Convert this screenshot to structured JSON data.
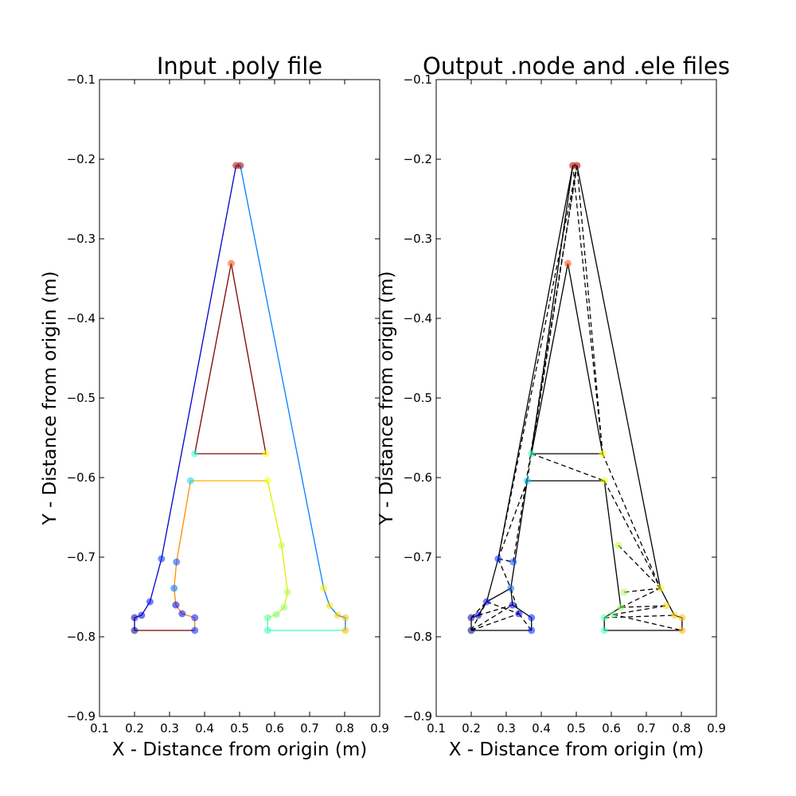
{
  "chart_data": [
    {
      "type": "line",
      "title": "Input .poly file",
      "xlabel": "X - Distance from origin (m)",
      "ylabel": "Y - Distance from origin (m)",
      "xlim": [
        0.1,
        0.9
      ],
      "ylim": [
        -0.9,
        -0.1
      ],
      "xticks": [
        "0.1",
        "0.2",
        "0.3",
        "0.4",
        "0.5",
        "0.6",
        "0.7",
        "0.8",
        "0.9"
      ],
      "yticks": [
        "−0.1",
        "−0.2",
        "−0.3",
        "−0.4",
        "−0.5",
        "−0.6",
        "−0.7",
        "−0.8",
        "−0.9"
      ],
      "grid": false,
      "segments": [
        {
          "color": "#7f0000",
          "points": [
            [
              0.2,
              -0.792
            ],
            [
              0.372,
              -0.792
            ]
          ]
        },
        {
          "color": "#0000c8",
          "points": [
            [
              0.2,
              -0.792
            ],
            [
              0.2,
              -0.776
            ],
            [
              0.22,
              -0.773
            ],
            [
              0.244,
              -0.756
            ],
            [
              0.277,
              -0.702
            ],
            [
              0.49,
              -0.208
            ]
          ]
        },
        {
          "color": "#0080ff",
          "points": [
            [
              0.49,
              -0.208
            ],
            [
              0.502,
              -0.208
            ],
            [
              0.74,
              -0.739
            ],
            [
              0.757,
              -0.761
            ],
            [
              0.78,
              -0.773
            ],
            [
              0.802,
              -0.776
            ],
            [
              0.802,
              -0.792
            ]
          ]
        },
        {
          "color": "#40ffb8",
          "points": [
            [
              0.802,
              -0.792
            ],
            [
              0.58,
              -0.792
            ],
            [
              0.58,
              -0.776
            ]
          ]
        },
        {
          "color": "#e0f000",
          "points": [
            [
              0.58,
              -0.776
            ],
            [
              0.605,
              -0.772
            ],
            [
              0.627,
              -0.763
            ],
            [
              0.637,
              -0.744
            ],
            [
              0.62,
              -0.685
            ],
            [
              0.58,
              -0.604
            ]
          ]
        },
        {
          "color": "#ffb000",
          "points": [
            [
              0.58,
              -0.604
            ],
            [
              0.36,
              -0.604
            ]
          ]
        },
        {
          "color": "#ff8c00",
          "points": [
            [
              0.36,
              -0.604
            ],
            [
              0.32,
              -0.706
            ],
            [
              0.313,
              -0.739
            ],
            [
              0.318,
              -0.76
            ],
            [
              0.336,
              -0.771
            ],
            [
              0.372,
              -0.776
            ],
            [
              0.372,
              -0.792
            ]
          ]
        },
        {
          "color": "#7f0000",
          "points": [
            [
              0.372,
              -0.57
            ],
            [
              0.476,
              -0.331
            ],
            [
              0.575,
              -0.57
            ],
            [
              0.372,
              -0.57
            ]
          ]
        }
      ],
      "nodes": [
        {
          "x": 0.2,
          "y": -0.792,
          "color": "#00007f"
        },
        {
          "x": 0.2,
          "y": -0.776,
          "color": "#00009f"
        },
        {
          "x": 0.22,
          "y": -0.773,
          "color": "#0000d0"
        },
        {
          "x": 0.244,
          "y": -0.756,
          "color": "#0010ff"
        },
        {
          "x": 0.277,
          "y": -0.702,
          "color": "#0030ff"
        },
        {
          "x": 0.32,
          "y": -0.706,
          "color": "#0050ff"
        },
        {
          "x": 0.313,
          "y": -0.739,
          "color": "#0070ff"
        },
        {
          "x": 0.318,
          "y": -0.76,
          "color": "#0000e0"
        },
        {
          "x": 0.336,
          "y": -0.771,
          "color": "#0000f0"
        },
        {
          "x": 0.372,
          "y": -0.776,
          "color": "#0018ff"
        },
        {
          "x": 0.372,
          "y": -0.792,
          "color": "#0020ff"
        },
        {
          "x": 0.36,
          "y": -0.604,
          "color": "#00d8ff"
        },
        {
          "x": 0.372,
          "y": -0.57,
          "color": "#30ffc8"
        },
        {
          "x": 0.58,
          "y": -0.792,
          "color": "#40ffb8"
        },
        {
          "x": 0.58,
          "y": -0.776,
          "color": "#50ffa8"
        },
        {
          "x": 0.605,
          "y": -0.772,
          "color": "#70ff88"
        },
        {
          "x": 0.627,
          "y": -0.763,
          "color": "#90ff68"
        },
        {
          "x": 0.637,
          "y": -0.744,
          "color": "#a8ff50"
        },
        {
          "x": 0.62,
          "y": -0.685,
          "color": "#c0ff38"
        },
        {
          "x": 0.58,
          "y": -0.604,
          "color": "#f0ff08"
        },
        {
          "x": 0.575,
          "y": -0.57,
          "color": "#ffff00"
        },
        {
          "x": 0.74,
          "y": -0.739,
          "color": "#ffec00"
        },
        {
          "x": 0.757,
          "y": -0.761,
          "color": "#ffe000"
        },
        {
          "x": 0.78,
          "y": -0.773,
          "color": "#ffd000"
        },
        {
          "x": 0.802,
          "y": -0.776,
          "color": "#ffc000"
        },
        {
          "x": 0.802,
          "y": -0.792,
          "color": "#ffb800"
        },
        {
          "x": 0.476,
          "y": -0.331,
          "color": "#ff4800"
        },
        {
          "x": 0.49,
          "y": -0.208,
          "color": "#b00000"
        },
        {
          "x": 0.502,
          "y": -0.208,
          "color": "#900000"
        }
      ]
    },
    {
      "type": "line",
      "title": "Output .node and .ele files",
      "xlabel": "X - Distance from origin (m)",
      "ylabel": "Y - Distance from origin (m)",
      "xlim": [
        0.1,
        0.9
      ],
      "ylim": [
        -0.9,
        -0.1
      ],
      "xticks": [
        "0.1",
        "0.2",
        "0.3",
        "0.4",
        "0.5",
        "0.6",
        "0.7",
        "0.8",
        "0.9"
      ],
      "yticks": [
        "−0.1",
        "−0.2",
        "−0.3",
        "−0.4",
        "−0.5",
        "−0.6",
        "−0.7",
        "−0.8",
        "−0.9"
      ],
      "grid": false,
      "solid_edges": [
        [
          [
            0.2,
            -0.792
          ],
          [
            0.372,
            -0.792
          ]
        ],
        [
          [
            0.2,
            -0.792
          ],
          [
            0.2,
            -0.776
          ]
        ],
        [
          [
            0.2,
            -0.776
          ],
          [
            0.22,
            -0.773
          ]
        ],
        [
          [
            0.22,
            -0.773
          ],
          [
            0.244,
            -0.756
          ]
        ],
        [
          [
            0.244,
            -0.756
          ],
          [
            0.277,
            -0.702
          ]
        ],
        [
          [
            0.277,
            -0.702
          ],
          [
            0.49,
            -0.208
          ]
        ],
        [
          [
            0.49,
            -0.208
          ],
          [
            0.502,
            -0.208
          ]
        ],
        [
          [
            0.502,
            -0.208
          ],
          [
            0.74,
            -0.739
          ]
        ],
        [
          [
            0.74,
            -0.739
          ],
          [
            0.78,
            -0.773
          ]
        ],
        [
          [
            0.78,
            -0.773
          ],
          [
            0.802,
            -0.776
          ]
        ],
        [
          [
            0.802,
            -0.776
          ],
          [
            0.802,
            -0.792
          ]
        ],
        [
          [
            0.802,
            -0.792
          ],
          [
            0.58,
            -0.792
          ]
        ],
        [
          [
            0.58,
            -0.792
          ],
          [
            0.58,
            -0.776
          ]
        ],
        [
          [
            0.58,
            -0.776
          ],
          [
            0.627,
            -0.763
          ]
        ],
        [
          [
            0.627,
            -0.763
          ],
          [
            0.58,
            -0.604
          ]
        ],
        [
          [
            0.58,
            -0.604
          ],
          [
            0.36,
            -0.604
          ]
        ],
        [
          [
            0.36,
            -0.604
          ],
          [
            0.313,
            -0.739
          ]
        ],
        [
          [
            0.313,
            -0.739
          ],
          [
            0.318,
            -0.76
          ]
        ],
        [
          [
            0.318,
            -0.76
          ],
          [
            0.372,
            -0.776
          ]
        ],
        [
          [
            0.372,
            -0.776
          ],
          [
            0.372,
            -0.792
          ]
        ],
        [
          [
            0.372,
            -0.57
          ],
          [
            0.575,
            -0.57
          ]
        ],
        [
          [
            0.372,
            -0.57
          ],
          [
            0.476,
            -0.331
          ]
        ],
        [
          [
            0.476,
            -0.331
          ],
          [
            0.575,
            -0.57
          ]
        ],
        [
          [
            0.244,
            -0.756
          ],
          [
            0.313,
            -0.739
          ]
        ]
      ],
      "dashed_edges": [
        [
          [
            0.277,
            -0.702
          ],
          [
            0.32,
            -0.706
          ]
        ],
        [
          [
            0.277,
            -0.702
          ],
          [
            0.313,
            -0.739
          ]
        ],
        [
          [
            0.277,
            -0.702
          ],
          [
            0.502,
            -0.208
          ]
        ],
        [
          [
            0.277,
            -0.702
          ],
          [
            0.36,
            -0.604
          ]
        ],
        [
          [
            0.32,
            -0.706
          ],
          [
            0.502,
            -0.208
          ]
        ],
        [
          [
            0.36,
            -0.604
          ],
          [
            0.49,
            -0.208
          ]
        ],
        [
          [
            0.372,
            -0.57
          ],
          [
            0.49,
            -0.208
          ]
        ],
        [
          [
            0.372,
            -0.57
          ],
          [
            0.502,
            -0.208
          ]
        ],
        [
          [
            0.575,
            -0.57
          ],
          [
            0.502,
            -0.208
          ]
        ],
        [
          [
            0.575,
            -0.57
          ],
          [
            0.49,
            -0.208
          ]
        ],
        [
          [
            0.372,
            -0.57
          ],
          [
            0.58,
            -0.604
          ]
        ],
        [
          [
            0.575,
            -0.57
          ],
          [
            0.74,
            -0.739
          ]
        ],
        [
          [
            0.58,
            -0.604
          ],
          [
            0.74,
            -0.739
          ]
        ],
        [
          [
            0.62,
            -0.685
          ],
          [
            0.74,
            -0.739
          ]
        ],
        [
          [
            0.637,
            -0.744
          ],
          [
            0.74,
            -0.739
          ]
        ],
        [
          [
            0.627,
            -0.763
          ],
          [
            0.74,
            -0.739
          ]
        ],
        [
          [
            0.627,
            -0.763
          ],
          [
            0.757,
            -0.761
          ]
        ],
        [
          [
            0.605,
            -0.772
          ],
          [
            0.757,
            -0.761
          ]
        ],
        [
          [
            0.58,
            -0.776
          ],
          [
            0.78,
            -0.773
          ]
        ],
        [
          [
            0.605,
            -0.772
          ],
          [
            0.802,
            -0.792
          ]
        ],
        [
          [
            0.2,
            -0.776
          ],
          [
            0.244,
            -0.756
          ]
        ],
        [
          [
            0.2,
            -0.792
          ],
          [
            0.244,
            -0.756
          ]
        ],
        [
          [
            0.2,
            -0.792
          ],
          [
            0.318,
            -0.76
          ]
        ],
        [
          [
            0.2,
            -0.792
          ],
          [
            0.336,
            -0.771
          ]
        ],
        [
          [
            0.22,
            -0.773
          ],
          [
            0.318,
            -0.76
          ]
        ],
        [
          [
            0.244,
            -0.756
          ],
          [
            0.336,
            -0.771
          ]
        ],
        [
          [
            0.336,
            -0.771
          ],
          [
            0.372,
            -0.792
          ]
        ],
        [
          [
            0.313,
            -0.739
          ],
          [
            0.336,
            -0.771
          ]
        ]
      ],
      "nodes": [
        {
          "x": 0.2,
          "y": -0.792,
          "color": "#00007f"
        },
        {
          "x": 0.2,
          "y": -0.776,
          "color": "#00009f"
        },
        {
          "x": 0.22,
          "y": -0.773,
          "color": "#0000d0"
        },
        {
          "x": 0.244,
          "y": -0.756,
          "color": "#0010ff"
        },
        {
          "x": 0.277,
          "y": -0.702,
          "color": "#0030ff"
        },
        {
          "x": 0.32,
          "y": -0.706,
          "color": "#0050ff"
        },
        {
          "x": 0.313,
          "y": -0.739,
          "color": "#0070ff"
        },
        {
          "x": 0.318,
          "y": -0.76,
          "color": "#0000e0"
        },
        {
          "x": 0.336,
          "y": -0.771,
          "color": "#0000f0"
        },
        {
          "x": 0.372,
          "y": -0.776,
          "color": "#0018ff"
        },
        {
          "x": 0.372,
          "y": -0.792,
          "color": "#0020ff"
        },
        {
          "x": 0.36,
          "y": -0.604,
          "color": "#00d8ff"
        },
        {
          "x": 0.372,
          "y": -0.57,
          "color": "#30ffc8"
        },
        {
          "x": 0.58,
          "y": -0.792,
          "color": "#40ffb8"
        },
        {
          "x": 0.58,
          "y": -0.776,
          "color": "#50ffa8"
        },
        {
          "x": 0.605,
          "y": -0.772,
          "color": "#70ff88"
        },
        {
          "x": 0.627,
          "y": -0.763,
          "color": "#90ff68"
        },
        {
          "x": 0.637,
          "y": -0.744,
          "color": "#a8ff50"
        },
        {
          "x": 0.62,
          "y": -0.685,
          "color": "#c0ff38"
        },
        {
          "x": 0.58,
          "y": -0.604,
          "color": "#f0ff08"
        },
        {
          "x": 0.575,
          "y": -0.57,
          "color": "#ffff00"
        },
        {
          "x": 0.74,
          "y": -0.739,
          "color": "#ffec00"
        },
        {
          "x": 0.757,
          "y": -0.761,
          "color": "#ffe000"
        },
        {
          "x": 0.78,
          "y": -0.773,
          "color": "#ffd000"
        },
        {
          "x": 0.802,
          "y": -0.776,
          "color": "#ffc000"
        },
        {
          "x": 0.802,
          "y": -0.792,
          "color": "#ffb800"
        },
        {
          "x": 0.476,
          "y": -0.331,
          "color": "#ff4800"
        },
        {
          "x": 0.49,
          "y": -0.208,
          "color": "#b00000"
        },
        {
          "x": 0.502,
          "y": -0.208,
          "color": "#900000"
        }
      ]
    }
  ]
}
